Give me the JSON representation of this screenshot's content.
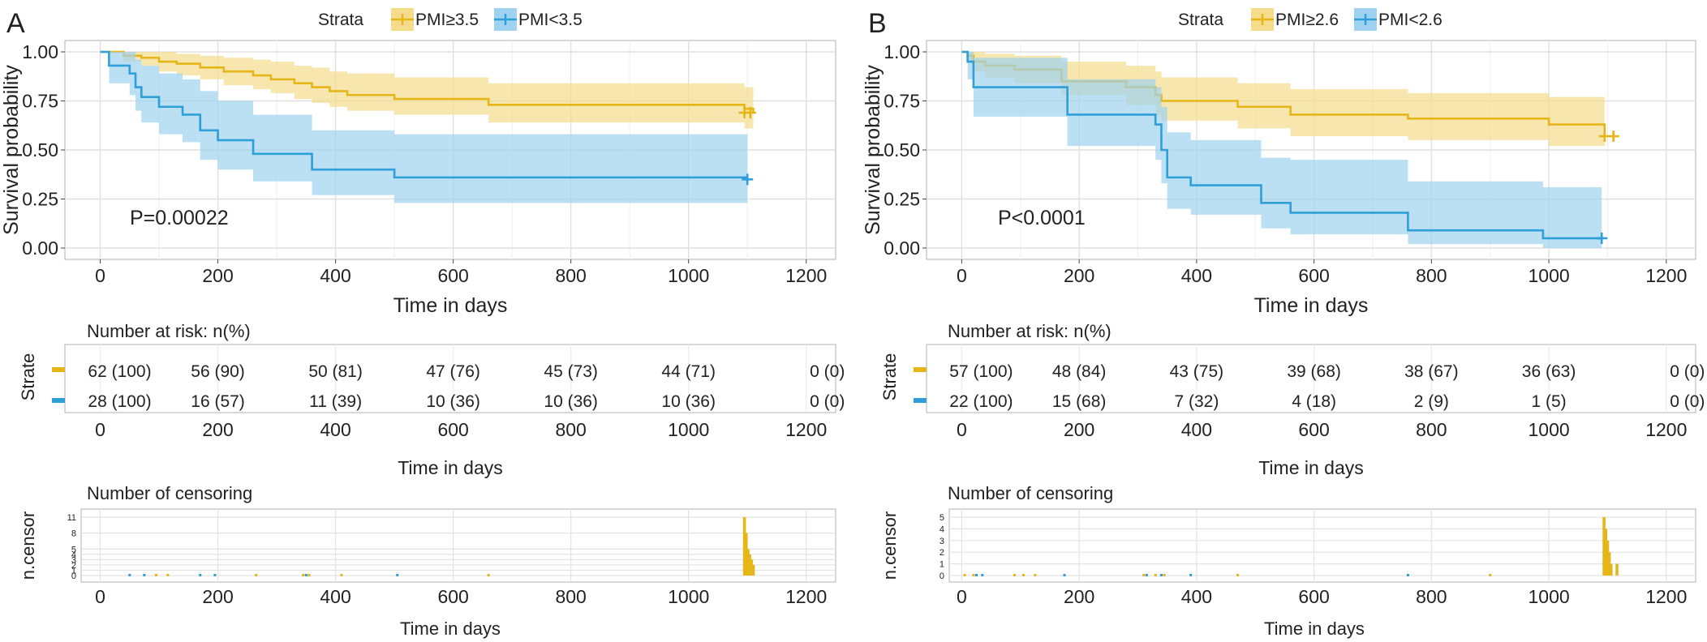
{
  "colors": {
    "strata1": "#e6b619",
    "strata2": "#2e9fd9",
    "band1": "#f4dc8c",
    "band2": "#9ed2ee",
    "panel_border": "#bdbdbd",
    "grid": "#e0e0e0"
  },
  "chart_data": [
    {
      "panel_label": "A",
      "type": "line",
      "legend": {
        "title": "Strata",
        "entries": [
          "PMI≥3.5",
          "PMI<3.5"
        ],
        "placement": "top"
      },
      "xlabel": "Time in days",
      "ylabel": "Survival probability",
      "xlim": [
        -60,
        1250
      ],
      "ylim": [
        0,
        1
      ],
      "x_ticks": [
        "0",
        "200",
        "400",
        "600",
        "800",
        "1000",
        "1200"
      ],
      "y_ticks": [
        "0.00",
        "0.25",
        "0.50",
        "0.75",
        "1.00"
      ],
      "annotation": "P=0.00022",
      "series": [
        {
          "name": "PMI≥3.5",
          "x": [
            0,
            40,
            70,
            100,
            130,
            170,
            210,
            260,
            290,
            330,
            360,
            390,
            420,
            500,
            660,
            1095,
            1110
          ],
          "y": [
            1.0,
            0.98,
            0.97,
            0.95,
            0.94,
            0.92,
            0.9,
            0.88,
            0.86,
            0.84,
            0.82,
            0.8,
            0.78,
            0.76,
            0.73,
            0.71,
            0.69
          ],
          "lower": [
            1.0,
            0.95,
            0.93,
            0.9,
            0.88,
            0.86,
            0.83,
            0.81,
            0.79,
            0.76,
            0.74,
            0.72,
            0.7,
            0.68,
            0.64,
            0.61,
            0.6
          ],
          "upper": [
            1.0,
            1.0,
            1.0,
            1.0,
            0.99,
            0.98,
            0.97,
            0.96,
            0.95,
            0.93,
            0.92,
            0.9,
            0.89,
            0.87,
            0.84,
            0.82,
            0.8
          ],
          "censor_x": [
            1095,
            1105
          ]
        },
        {
          "name": "PMI<3.5",
          "x": [
            0,
            15,
            50,
            60,
            70,
            100,
            140,
            170,
            200,
            260,
            360,
            500,
            1100
          ],
          "y": [
            1.0,
            0.93,
            0.89,
            0.82,
            0.77,
            0.72,
            0.68,
            0.6,
            0.55,
            0.48,
            0.4,
            0.36,
            0.35
          ],
          "lower": [
            1.0,
            0.84,
            0.78,
            0.7,
            0.64,
            0.58,
            0.54,
            0.45,
            0.4,
            0.34,
            0.27,
            0.23,
            0.22
          ],
          "upper": [
            1.0,
            1.0,
            1.0,
            0.96,
            0.93,
            0.89,
            0.86,
            0.8,
            0.75,
            0.68,
            0.6,
            0.58,
            0.57
          ],
          "censor_x": [
            1100
          ]
        }
      ],
      "risk_table": {
        "title": "Number at risk: n(%)",
        "ylabel": "Strate",
        "xlabel": "Time in days",
        "times": [
          0,
          200,
          400,
          600,
          800,
          1000,
          1200
        ],
        "rows": [
          {
            "values": [
              "62 (100)",
              "56 (90)",
              "50 (81)",
              "47 (76)",
              "45 (73)",
              "44 (71)",
              "0 (0)"
            ]
          },
          {
            "values": [
              "28 (100)",
              "16 (57)",
              "11 (39)",
              "10 (36)",
              "10 (36)",
              "10 (36)",
              "0 (0)"
            ]
          }
        ]
      },
      "censoring": {
        "title": "Number of censoring",
        "ylabel": "n.censor",
        "xlabel": "Time in days",
        "ylim": [
          0,
          11
        ],
        "y_ticks": [
          "0",
          "1",
          "2",
          "3",
          "4",
          "5",
          "8",
          "11"
        ],
        "y_tick_values": [
          0,
          1,
          2,
          3,
          4,
          5,
          8,
          11
        ],
        "strata1_bars": [
          {
            "x": 1095,
            "n": 11
          },
          {
            "x": 1098,
            "n": 8
          },
          {
            "x": 1101,
            "n": 5
          },
          {
            "x": 1104,
            "n": 4
          },
          {
            "x": 1107,
            "n": 3
          },
          {
            "x": 1110,
            "n": 2
          }
        ],
        "strata2_bars": [],
        "strata1_dots": [
          95,
          115,
          265,
          345,
          355,
          410,
          660
        ],
        "strata2_dots": [
          50,
          75,
          170,
          195,
          350,
          505
        ]
      }
    },
    {
      "panel_label": "B",
      "type": "line",
      "legend": {
        "title": "Strata",
        "entries": [
          "PMI≥2.6",
          "PMI<2.6"
        ],
        "placement": "top"
      },
      "xlabel": "Time in days",
      "ylabel": "Survival probability",
      "xlim": [
        -60,
        1250
      ],
      "ylim": [
        0,
        1
      ],
      "x_ticks": [
        "0",
        "200",
        "400",
        "600",
        "800",
        "1000",
        "1200"
      ],
      "y_ticks": [
        "0.00",
        "0.25",
        "0.50",
        "0.75",
        "1.00"
      ],
      "annotation": "P<0.0001",
      "series": [
        {
          "name": "PMI≥2.6",
          "x": [
            0,
            10,
            20,
            40,
            90,
            170,
            280,
            330,
            340,
            470,
            560,
            760,
            1000,
            1095
          ],
          "y": [
            1.0,
            0.98,
            0.95,
            0.93,
            0.91,
            0.85,
            0.82,
            0.78,
            0.75,
            0.72,
            0.68,
            0.66,
            0.63,
            0.57
          ],
          "lower": [
            1.0,
            0.95,
            0.9,
            0.87,
            0.84,
            0.78,
            0.73,
            0.68,
            0.65,
            0.61,
            0.57,
            0.55,
            0.52,
            0.47
          ],
          "upper": [
            1.0,
            1.0,
            1.0,
            0.99,
            0.98,
            0.95,
            0.93,
            0.9,
            0.87,
            0.84,
            0.81,
            0.79,
            0.77,
            0.73
          ],
          "censor_x": [
            1095,
            1110
          ]
        },
        {
          "name": "PMI<2.6",
          "x": [
            0,
            10,
            20,
            180,
            330,
            340,
            350,
            390,
            510,
            560,
            760,
            990,
            1090
          ],
          "y": [
            1.0,
            0.95,
            0.82,
            0.68,
            0.63,
            0.5,
            0.36,
            0.32,
            0.23,
            0.18,
            0.09,
            0.05,
            0.05
          ],
          "lower": [
            1.0,
            0.86,
            0.67,
            0.52,
            0.45,
            0.33,
            0.2,
            0.17,
            0.1,
            0.07,
            0.02,
            0.0,
            0.0
          ],
          "upper": [
            1.0,
            1.0,
            0.97,
            0.86,
            0.82,
            0.72,
            0.59,
            0.55,
            0.46,
            0.45,
            0.34,
            0.31,
            0.31
          ],
          "censor_x": [
            1090
          ]
        }
      ],
      "risk_table": {
        "title": "Number at risk: n(%)",
        "ylabel": "Strate",
        "xlabel": "Time in days",
        "times": [
          0,
          200,
          400,
          600,
          800,
          1000,
          1200
        ],
        "rows": [
          {
            "values": [
              "57 (100)",
              "48 (84)",
              "43 (75)",
              "39 (68)",
              "38 (67)",
              "36 (63)",
              "0 (0)"
            ]
          },
          {
            "values": [
              "22 (100)",
              "15 (68)",
              "7 (32)",
              "4 (18)",
              "2 (9)",
              "1 (5)",
              "0 (0)"
            ]
          }
        ]
      },
      "censoring": {
        "title": "Number of censoring",
        "ylabel": "n.censor",
        "xlabel": "Time in days",
        "ylim": [
          0,
          5
        ],
        "y_ticks": [
          "0",
          "1",
          "2",
          "3",
          "4",
          "5"
        ],
        "y_tick_values": [
          0,
          1,
          2,
          3,
          4,
          5
        ],
        "strata1_bars": [
          {
            "x": 1094,
            "n": 5
          },
          {
            "x": 1097,
            "n": 4
          },
          {
            "x": 1100,
            "n": 3
          },
          {
            "x": 1103,
            "n": 2
          },
          {
            "x": 1106,
            "n": 1
          },
          {
            "x": 1116,
            "n": 1
          }
        ],
        "strata2_bars": [],
        "strata1_dots": [
          5,
          20,
          90,
          105,
          125,
          310,
          330,
          345,
          470,
          900
        ],
        "strata2_dots": [
          25,
          35,
          175,
          315,
          340,
          390,
          760
        ]
      }
    }
  ]
}
